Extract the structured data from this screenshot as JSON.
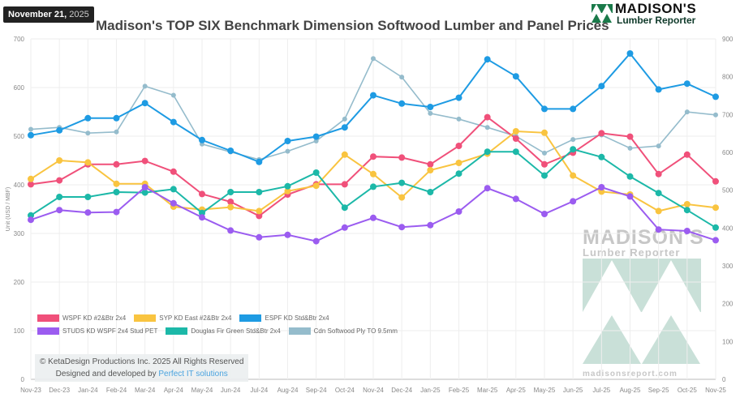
{
  "header": {
    "date_main": "November 21,",
    "date_year": "2025",
    "logo_brand": "MADISON'S",
    "logo_sub": "Lumber Reporter"
  },
  "watermark": {
    "brand": "MADISON'S",
    "sub": "Lumber Reporter",
    "url": "madisonsreport.com"
  },
  "footer": {
    "copyright": "© KetaDesign Productions Inc. 2025 All Rights Reserved",
    "designed_by": "Designed and developed by ",
    "designer_link": "Perfect IT solutions"
  },
  "chart_data": {
    "type": "line",
    "title": "Madison's TOP SIX Benchmark Dimension Softwood Lumber and Panel Prices",
    "ylabel": "Unit (USD / MBF)",
    "ylim": [
      0,
      700
    ],
    "y2lim": [
      0,
      900
    ],
    "yticks": [
      0,
      100,
      200,
      300,
      400,
      500,
      600,
      700
    ],
    "y2ticks": [
      0,
      100,
      200,
      300,
      400,
      500,
      600,
      700,
      800,
      900
    ],
    "grid": true,
    "legend_placement": "bottom-left",
    "categories": [
      "Nov-23",
      "Dec-23",
      "Jan-24",
      "Feb-24",
      "Mar-24",
      "Apr-24",
      "May-24",
      "Jun-24",
      "Jul-24",
      "Aug-24",
      "Sep-24",
      "Oct-24",
      "Nov-24",
      "Dec-24",
      "Jan-25",
      "Feb-25",
      "Mar-25",
      "Apr-25",
      "May-25",
      "Jun-25",
      "Jul-25",
      "Aug-25",
      "Sep-25",
      "Oct-25",
      "Nov-25"
    ],
    "series": [
      {
        "name": "WSPF KD #2&Btr 2x4",
        "color": "#f0507a",
        "axis": "left",
        "values": [
          401,
          409,
          442,
          442,
          449,
          427,
          381,
          365,
          336,
          380,
          401,
          401,
          458,
          456,
          442,
          480,
          539,
          495,
          442,
          466,
          506,
          499,
          422,
          462,
          407
        ]
      },
      {
        "name": "SYP KD East #2&Btr 2x4",
        "color": "#f9c440",
        "axis": "left",
        "values": [
          412,
          450,
          446,
          402,
          402,
          355,
          349,
          354,
          346,
          387,
          398,
          462,
          422,
          374,
          430,
          445,
          464,
          510,
          507,
          419,
          386,
          380,
          346,
          360,
          353
        ]
      },
      {
        "name": "ESPF KD Std&Btr 2x4",
        "color": "#1e9be3",
        "axis": "left",
        "values": [
          502,
          512,
          537,
          537,
          568,
          529,
          492,
          470,
          447,
          490,
          499,
          518,
          584,
          567,
          560,
          579,
          658,
          623,
          556,
          556,
          603,
          670,
          596,
          608,
          581
        ]
      },
      {
        "name": "STUDS KD WSPF 2x4 Stud PET",
        "color": "#9b5cf0",
        "axis": "left",
        "values": [
          328,
          348,
          343,
          344,
          395,
          362,
          333,
          306,
          292,
          297,
          284,
          312,
          332,
          313,
          317,
          345,
          393,
          371,
          340,
          366,
          395,
          376,
          308,
          305,
          286
        ]
      },
      {
        "name": "Douglas Fir Green Std&Btr 2x4",
        "color": "#1cb8a8",
        "axis": "left",
        "values": [
          337,
          375,
          375,
          385,
          384,
          391,
          342,
          385,
          385,
          397,
          425,
          353,
          396,
          404,
          385,
          423,
          468,
          468,
          419,
          473,
          457,
          417,
          383,
          348,
          312
        ]
      },
      {
        "name": "Cdn Softwood Ply TO 9.5mm",
        "color": "#95bccc",
        "axis": "right",
        "values": [
          661,
          666,
          651,
          654,
          775,
          751,
          622,
          601,
          581,
          603,
          630,
          688,
          848,
          799,
          703,
          688,
          666,
          643,
          598,
          634,
          646,
          611,
          617,
          707,
          699
        ]
      }
    ]
  }
}
